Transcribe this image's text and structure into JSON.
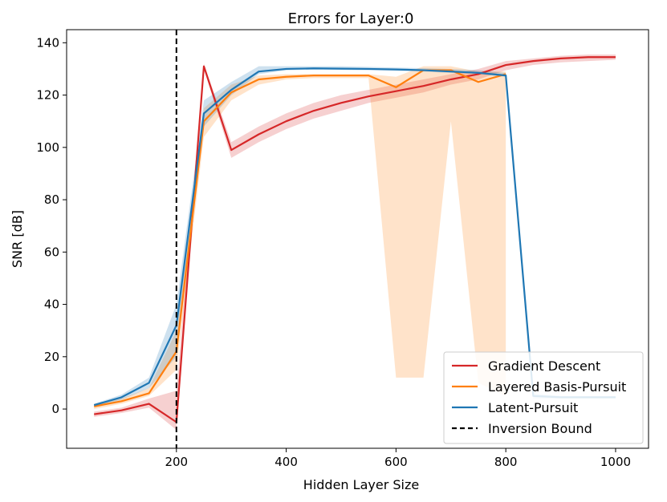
{
  "chart_data": {
    "type": "line",
    "title": "Errors for Layer:0",
    "xlabel": "Hidden Layer Size",
    "ylabel": "SNR [dB]",
    "xlim": [
      0,
      1060
    ],
    "ylim": [
      -15,
      145
    ],
    "xticks": [
      200,
      400,
      600,
      800,
      1000
    ],
    "yticks": [
      0,
      20,
      40,
      60,
      80,
      100,
      120,
      140
    ],
    "grid": false,
    "legend_position": "lower-right",
    "series": [
      {
        "name": "Gradient Descent",
        "color": "#d62728",
        "x": [
          50,
          100,
          150,
          200,
          250,
          300,
          350,
          400,
          450,
          500,
          550,
          600,
          650,
          700,
          750,
          800,
          850,
          900,
          950,
          1000
        ],
        "y": [
          -2,
          -0.5,
          2,
          -5,
          131,
          99,
          105,
          110,
          114,
          117,
          119.5,
          121.5,
          123.5,
          126,
          128,
          131.5,
          133,
          134,
          134.5,
          134.5
        ],
        "lower": [
          -3,
          -1.5,
          0.5,
          -8,
          130,
          96,
          102,
          107,
          111,
          114,
          117,
          119,
          121,
          124,
          126,
          129.5,
          131.5,
          132.5,
          133,
          133.5
        ],
        "upper": [
          -1,
          0.5,
          4,
          7,
          132,
          102,
          108,
          113,
          117,
          120,
          122,
          124,
          126,
          128,
          130,
          133,
          134,
          135,
          135.5,
          135.5
        ]
      },
      {
        "name": "Layered Basis-Pursuit",
        "color": "#ff7f0e",
        "x": [
          50,
          100,
          150,
          200,
          250,
          300,
          350,
          400,
          450,
          500,
          550,
          600,
          650,
          700,
          750,
          800,
          850,
          900,
          950,
          1000
        ],
        "y": [
          1,
          3,
          6,
          22,
          110,
          121,
          126,
          127,
          127.5,
          127.5,
          127.5,
          123,
          129.5,
          129.5,
          125,
          128,
          null,
          null,
          null,
          null
        ],
        "lower": [
          0,
          2,
          5,
          15,
          104,
          118,
          124,
          126,
          126.5,
          126.5,
          126.5,
          12,
          12,
          110,
          10,
          5,
          null,
          null,
          null,
          null
        ],
        "upper": [
          2,
          4,
          8,
          30,
          115,
          124,
          127.5,
          128,
          128,
          128,
          128,
          127,
          131,
          131,
          129,
          129,
          null,
          null,
          null,
          null
        ]
      },
      {
        "name": "Latent-Pursuit",
        "color": "#1f77b4",
        "x": [
          50,
          100,
          150,
          200,
          250,
          300,
          350,
          400,
          450,
          500,
          550,
          600,
          650,
          700,
          750,
          800,
          850,
          900,
          950,
          1000
        ],
        "y": [
          1.5,
          4.5,
          10,
          32,
          113,
          122,
          129,
          130,
          130.2,
          130.1,
          130,
          129.8,
          129.5,
          129,
          128.5,
          127.5,
          5,
          4.5,
          4.5,
          4.5
        ],
        "lower": [
          1,
          3.5,
          8,
          20,
          108,
          120,
          128,
          129.5,
          129.7,
          129.6,
          129.5,
          129.3,
          129,
          128.5,
          128,
          127,
          4,
          4,
          4,
          4
        ],
        "upper": [
          2,
          5.5,
          12,
          40,
          118,
          125,
          131,
          131,
          131,
          131,
          130.8,
          130.5,
          130.3,
          130,
          129.5,
          128.5,
          6,
          5,
          5,
          5
        ]
      }
    ],
    "vlines": [
      {
        "name": "Inversion Bound",
        "x": 200,
        "color": "#000000",
        "style": "dashed"
      }
    ]
  }
}
